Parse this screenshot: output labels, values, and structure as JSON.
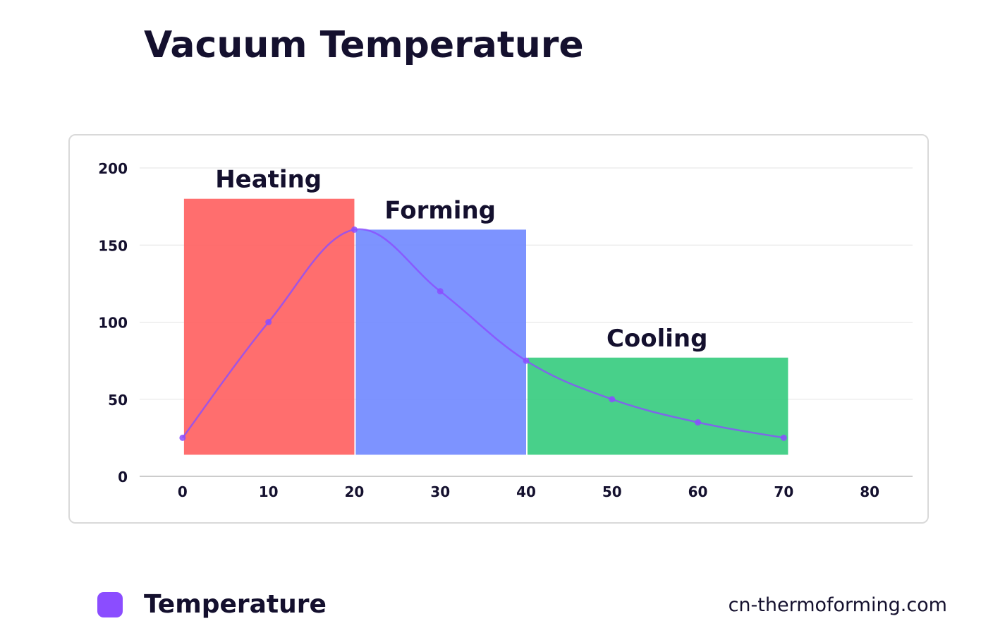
{
  "chart_data": {
    "type": "line",
    "title": "Vacuum Temperature",
    "xlabel": "",
    "ylabel": "",
    "xlim": [
      -5,
      85
    ],
    "ylim": [
      0,
      200
    ],
    "x_ticks": [
      0,
      10,
      20,
      30,
      40,
      50,
      60,
      70,
      80
    ],
    "y_ticks": [
      0,
      50,
      100,
      150,
      200
    ],
    "grid": true,
    "legend_position": "bottom-left",
    "series": [
      {
        "name": "Temperature",
        "color": "#8b4dff",
        "x": [
          0,
          10,
          20,
          30,
          40,
          50,
          60,
          70
        ],
        "y": [
          25,
          100,
          160,
          120,
          75,
          50,
          35,
          25
        ]
      }
    ],
    "phases": [
      {
        "label": "Heating",
        "x_start": 0,
        "x_end": 20,
        "y_bottom": 14,
        "y_top": 180,
        "color": "#ff5a5a"
      },
      {
        "label": "Forming",
        "x_start": 20,
        "x_end": 40,
        "y_bottom": 14,
        "y_top": 160,
        "color": "#6b84ff"
      },
      {
        "label": "Cooling",
        "x_start": 40,
        "x_end": 70.5,
        "y_bottom": 14,
        "y_top": 77,
        "color": "#2fc97a"
      }
    ]
  },
  "footer": {
    "watermark": "cn-thermoforming.com"
  }
}
